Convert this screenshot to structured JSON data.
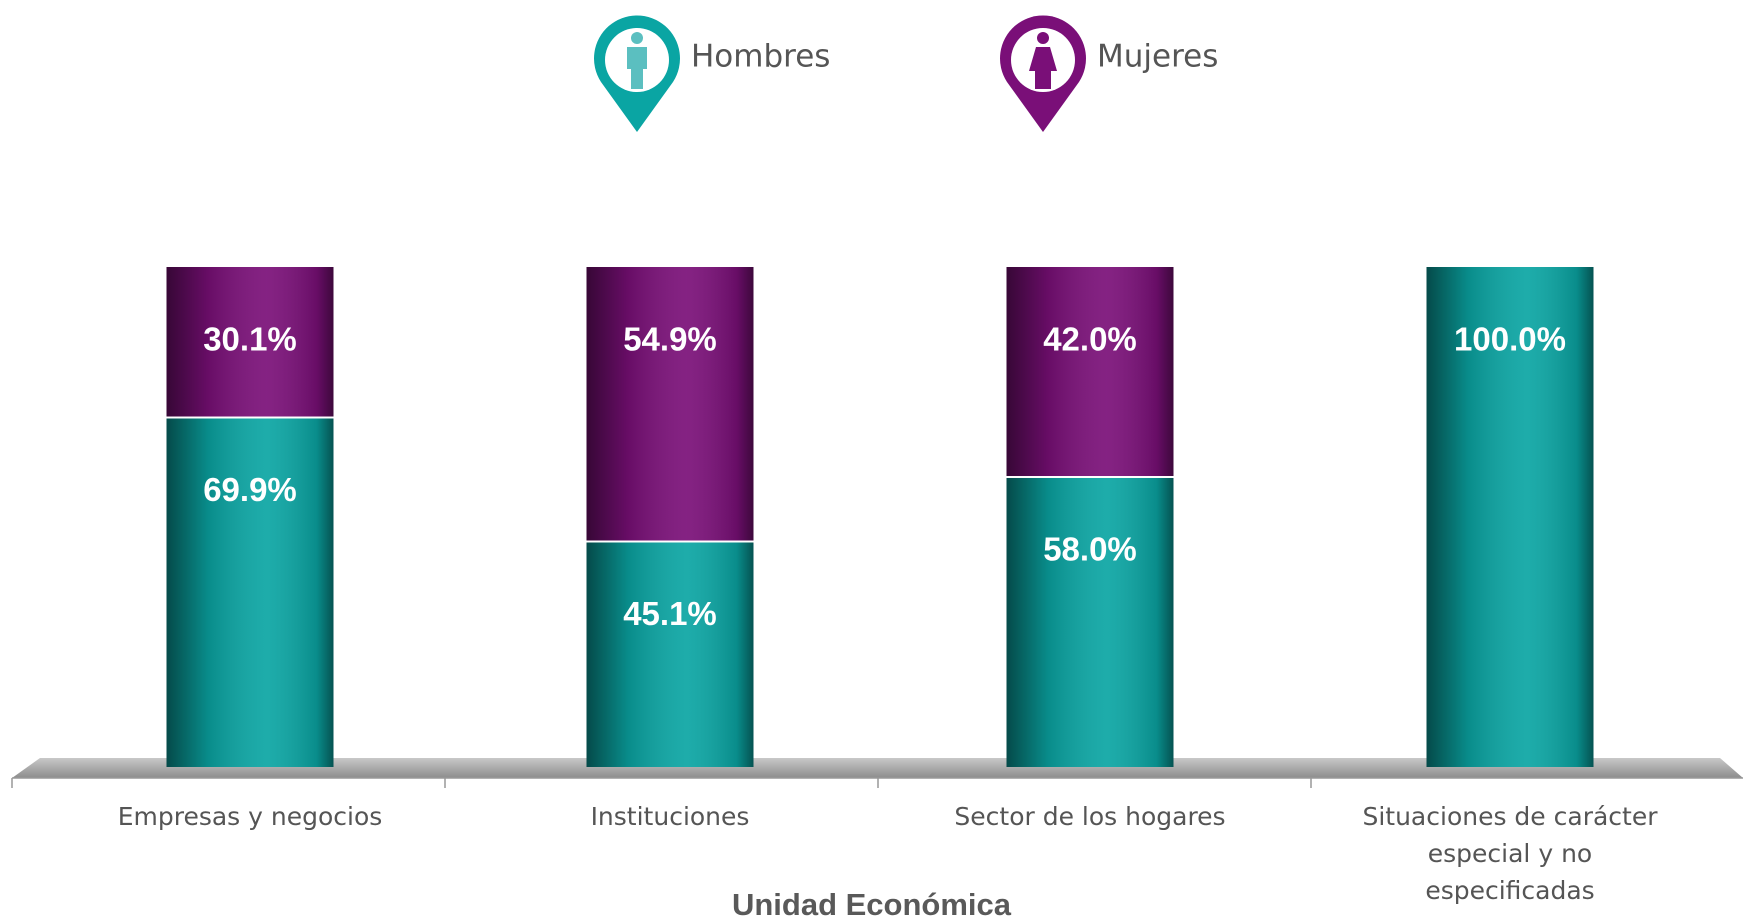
{
  "chart_data": {
    "type": "stacked_bar",
    "x_label": "Unidad Económica",
    "categories": [
      "Empresas y negocios",
      "Instituciones",
      "Sector de los hogares",
      "Situaciones de carácter especial y no especificadas"
    ],
    "series": [
      {
        "name": "Hombres",
        "color": "#0aa5a3",
        "values": [
          69.9,
          45.1,
          58.0,
          100.0
        ],
        "value_labels": [
          "69.9%",
          "45.1%",
          "58.0%",
          "100.0%"
        ]
      },
      {
        "name": "Mujeres",
        "color": "#7a0f78",
        "values": [
          30.1,
          54.9,
          42.0,
          null
        ],
        "value_labels": [
          "30.1%",
          "54.9%",
          "42.0%",
          null
        ]
      }
    ],
    "ylim": [
      0,
      100
    ]
  }
}
